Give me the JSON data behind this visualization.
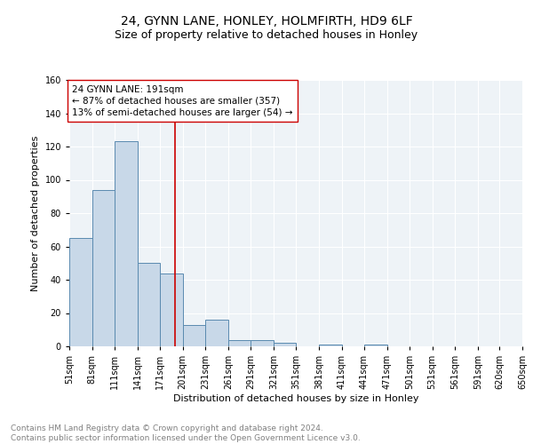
{
  "title": "24, GYNN LANE, HONLEY, HOLMFIRTH, HD9 6LF",
  "subtitle": "Size of property relative to detached houses in Honley",
  "xlabel": "Distribution of detached houses by size in Honley",
  "ylabel": "Number of detached properties",
  "footnote": "Contains HM Land Registry data © Crown copyright and database right 2024.\nContains public sector information licensed under the Open Government Licence v3.0.",
  "bar_edges": [
    51,
    81,
    111,
    141,
    171,
    201,
    231,
    261,
    291,
    321,
    351,
    381,
    411,
    441,
    471,
    501,
    531,
    561,
    591,
    620,
    650
  ],
  "bar_heights": [
    65,
    94,
    123,
    50,
    44,
    13,
    16,
    4,
    4,
    2,
    0,
    1,
    0,
    1,
    0,
    0,
    0,
    0,
    0,
    0
  ],
  "bar_color": "#c8d8e8",
  "bar_edgecolor": "#5a8ab0",
  "property_size": 191,
  "vline_color": "#cc0000",
  "annotation_text": "24 GYNN LANE: 191sqm\n← 87% of detached houses are smaller (357)\n13% of semi-detached houses are larger (54) →",
  "annotation_box_edgecolor": "#cc0000",
  "ylim": [
    0,
    160
  ],
  "yticks": [
    0,
    20,
    40,
    60,
    80,
    100,
    120,
    140,
    160
  ],
  "tick_labels": [
    "51sqm",
    "81sqm",
    "111sqm",
    "141sqm",
    "171sqm",
    "201sqm",
    "231sqm",
    "261sqm",
    "291sqm",
    "321sqm",
    "351sqm",
    "381sqm",
    "411sqm",
    "441sqm",
    "471sqm",
    "501sqm",
    "531sqm",
    "561sqm",
    "591sqm",
    "620sqm",
    "650sqm"
  ],
  "background_color": "#eef3f7",
  "grid_color": "#ffffff",
  "title_fontsize": 10,
  "subtitle_fontsize": 9,
  "axis_label_fontsize": 8,
  "tick_fontsize": 7,
  "annotation_fontsize": 7.5,
  "footnote_fontsize": 6.5,
  "ylabel_fontsize": 8
}
